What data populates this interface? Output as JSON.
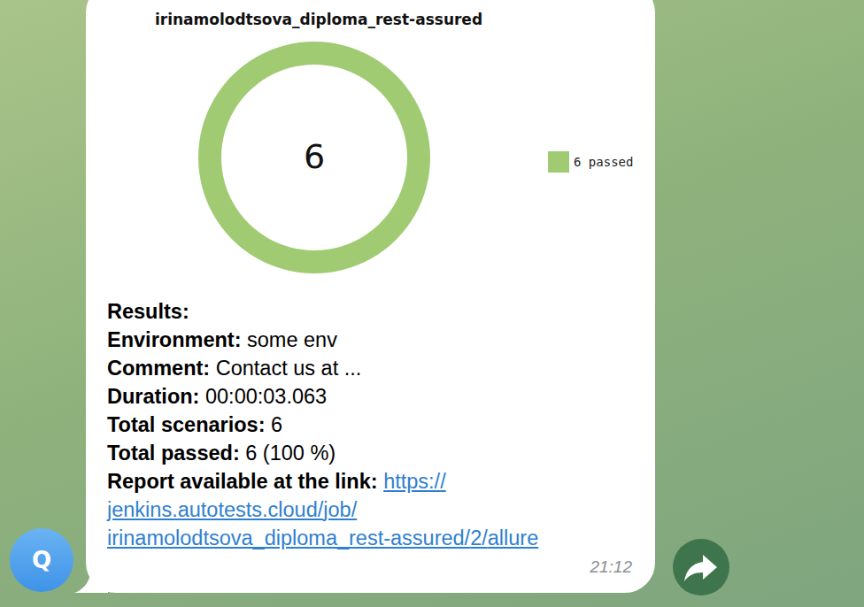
{
  "chart_data": {
    "type": "pie",
    "title": "irinamolodtsova_diploma_rest-assured",
    "categories": [
      "6 passed"
    ],
    "values": [
      6
    ],
    "colors": [
      "#a0cb72"
    ],
    "legend": "right",
    "annotations": [
      "6"
    ]
  },
  "message": {
    "lines": [
      {
        "label": "Results:"
      },
      {
        "label": "Environment:",
        "text": "some env"
      },
      {
        "label": "Comment:",
        "text": "Contact us at ..."
      },
      {
        "label": "Duration:",
        "text": "00:00:03.063"
      },
      {
        "label": "Total scenarios:",
        "text": "6"
      },
      {
        "label": "Total passed:",
        "text": "6 (100 %)"
      }
    ],
    "link": {
      "label": "Report available at the link:",
      "url": "https://jenkins.autotests.cloud/job/irinamolodtsova_diploma_rest-assured/2/allure"
    },
    "time": "21:12",
    "avatar": "Q"
  }
}
